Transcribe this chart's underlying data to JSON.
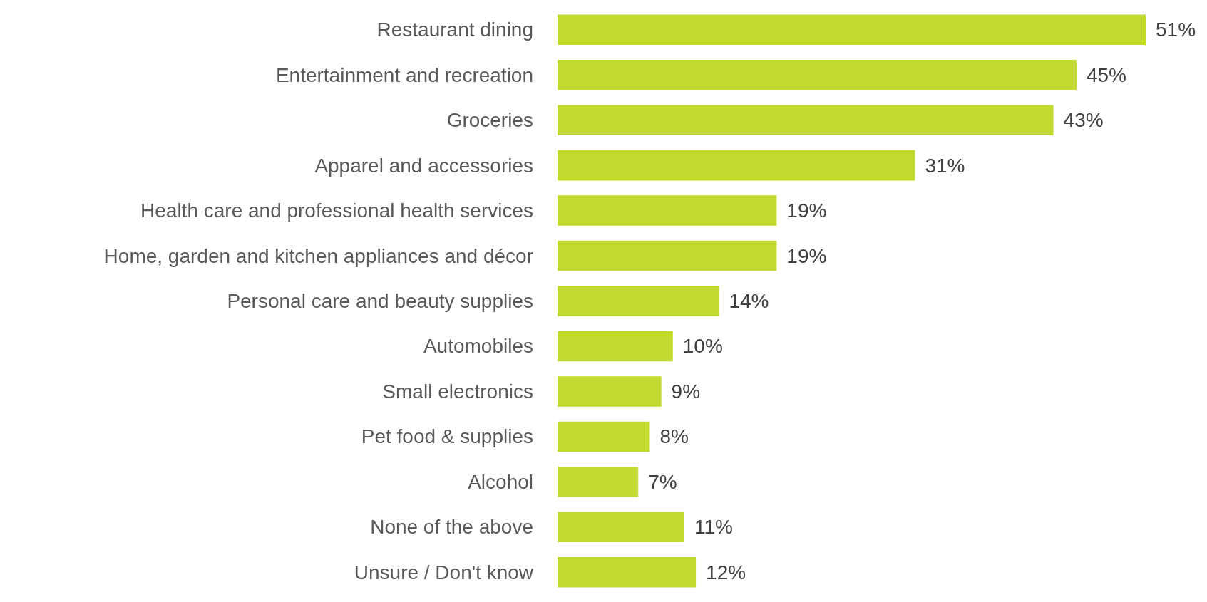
{
  "chart_data": {
    "type": "bar",
    "orientation": "horizontal",
    "categories": [
      "Restaurant dining",
      "Entertainment and recreation",
      "Groceries",
      "Apparel and accessories",
      "Health care and professional health services",
      "Home, garden and kitchen appliances and décor",
      "Personal care and beauty supplies",
      "Automobiles",
      "Small electronics",
      "Pet food & supplies",
      "Alcohol",
      "None of the above",
      "Unsure / Don't know"
    ],
    "values": [
      51,
      45,
      43,
      31,
      19,
      19,
      14,
      10,
      9,
      8,
      7,
      11,
      12
    ],
    "value_labels": [
      "51%",
      "45%",
      "43%",
      "31%",
      "19%",
      "19%",
      "14%",
      "10%",
      "9%",
      "8%",
      "7%",
      "11%",
      "12%"
    ],
    "color": "#c2d92f"
  }
}
